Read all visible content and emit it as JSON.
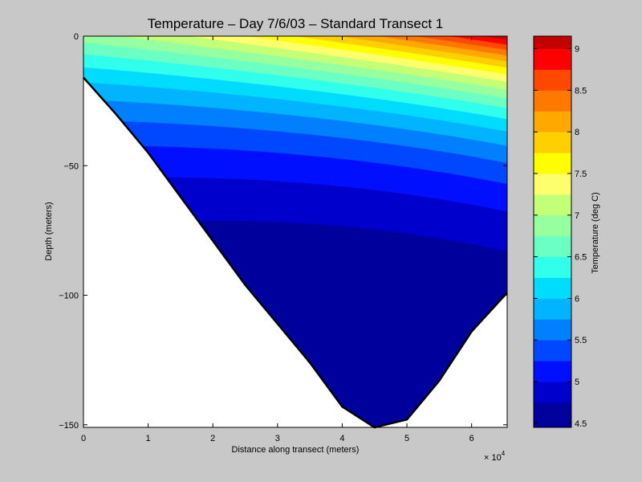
{
  "chart_data": {
    "type": "contour",
    "title": "Temperature – Day 7/6/03 – Standard Transect 1",
    "xlabel": "Distance along transect (meters)",
    "ylabel": "Depth (meters)",
    "x_multiplier_base": "× 10",
    "x_multiplier_exp": "4",
    "xlim": [
      0,
      6.55
    ],
    "ylim": [
      -151,
      0
    ],
    "x_ticks": [
      "0",
      "1",
      "2",
      "3",
      "4",
      "5",
      "6"
    ],
    "y_ticks": [
      "0",
      "−50",
      "−100",
      "−150"
    ],
    "x_tick_values": [
      0,
      1,
      2,
      3,
      4,
      5,
      6
    ],
    "y_tick_values": [
      0,
      -50,
      -100,
      -150
    ],
    "bottom_profile": [
      [
        0,
        -16
      ],
      [
        0.5,
        -30
      ],
      [
        1,
        -45
      ],
      [
        1.5,
        -62
      ],
      [
        2,
        -79
      ],
      [
        2.5,
        -96
      ],
      [
        3,
        -111
      ],
      [
        3.5,
        -126
      ],
      [
        4,
        -143
      ],
      [
        4.5,
        -151
      ],
      [
        5,
        -148
      ],
      [
        5.5,
        -133
      ],
      [
        6,
        -114
      ],
      [
        6.55,
        -99
      ]
    ],
    "colorbar": {
      "label": "Temperature (deg C)",
      "range": [
        4.45,
        9.15
      ],
      "ticks": [
        "4.5",
        "5",
        "5.5",
        "6",
        "6.5",
        "7",
        "7.5",
        "8",
        "8.5",
        "9"
      ],
      "tick_values": [
        4.5,
        5,
        5.5,
        6,
        6.5,
        7,
        7.5,
        8,
        8.5,
        9
      ],
      "levels": [
        4.5,
        4.75,
        5,
        5.25,
        5.5,
        5.75,
        6,
        6.25,
        6.5,
        6.75,
        7,
        7.25,
        7.5,
        7.75,
        8,
        8.25,
        8.5,
        8.75,
        9
      ],
      "colors": [
        "#00009c",
        "#0000cd",
        "#0010ff",
        "#0048ff",
        "#0080ff",
        "#00b4ff",
        "#00dcff",
        "#30ffec",
        "#6cffc4",
        "#96ffa0",
        "#c4ff78",
        "#ffff6e",
        "#ffff00",
        "#ffd000",
        "#ffa800",
        "#ff7800",
        "#ff4800",
        "#ff0000",
        "#c40000"
      ]
    }
  }
}
